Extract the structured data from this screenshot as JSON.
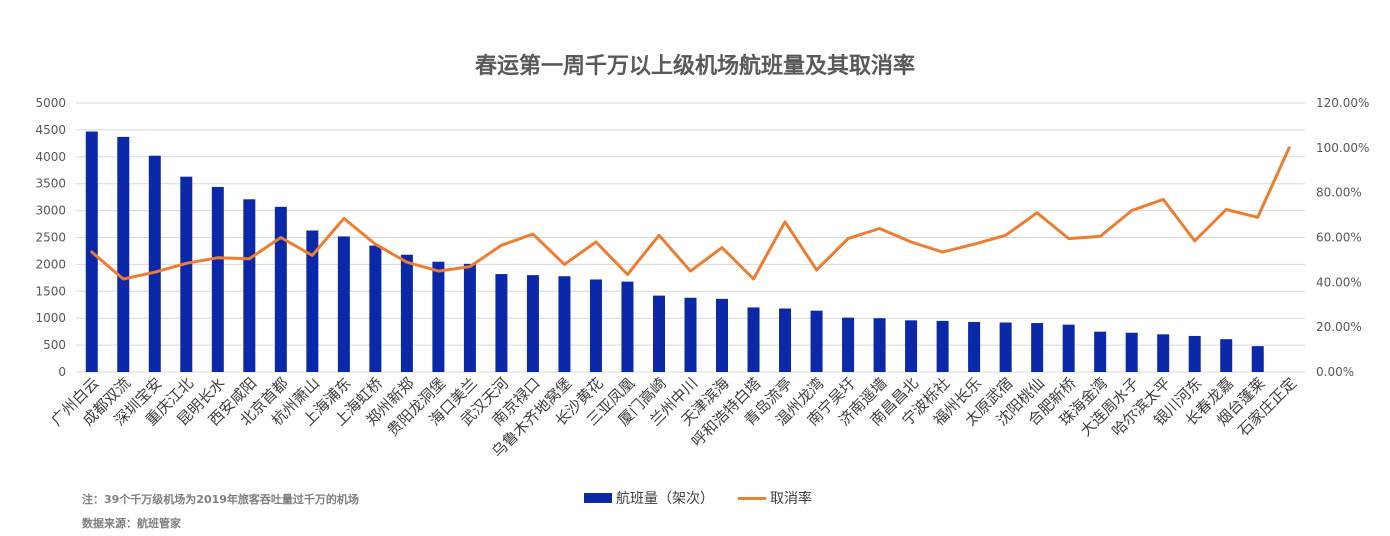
{
  "chart_data": {
    "type": "bar",
    "title": "春运第一周千万以上级机场航班量及其取消率",
    "categories": [
      "广州白云",
      "成都双流",
      "深圳宝安",
      "重庆江北",
      "昆明长水",
      "西安咸阳",
      "北京首都",
      "杭州萧山",
      "上海浦东",
      "上海虹桥",
      "郑州新郑",
      "贵阳龙洞堡",
      "海口美兰",
      "武汉天河",
      "南京禄口",
      "乌鲁木齐地窝堡",
      "长沙黄花",
      "三亚凤凰",
      "厦门高崎",
      "兰州中川",
      "天津滨海",
      "呼和浩特白塔",
      "青岛流亭",
      "温州龙湾",
      "南宁吴圩",
      "济南遥墙",
      "南昌昌北",
      "宁波栎社",
      "福州长乐",
      "太原武宿",
      "沈阳桃仙",
      "合肥新桥",
      "珠海金湾",
      "大连周水子",
      "哈尔滨太平",
      "银川河东",
      "长春龙嘉",
      "烟台蓬莱",
      "石家庄正定"
    ],
    "series": [
      {
        "name": "航班量（架次）",
        "type": "bar",
        "axis": "left",
        "color": "#0a28a8",
        "values": [
          4470,
          4370,
          4020,
          3630,
          3440,
          3210,
          3070,
          2630,
          2520,
          2350,
          2180,
          2050,
          2010,
          1820,
          1800,
          1780,
          1720,
          1680,
          1420,
          1380,
          1360,
          1200,
          1180,
          1140,
          1010,
          1000,
          960,
          950,
          930,
          920,
          910,
          880,
          750,
          730,
          700,
          670,
          610,
          480,
          0
        ]
      },
      {
        "name": "取消率",
        "type": "line",
        "axis": "right",
        "color": "#ed7d31",
        "values": [
          53.5,
          41.5,
          44.5,
          48.5,
          51,
          50.5,
          60,
          52,
          68.5,
          57,
          49,
          45,
          47,
          56.5,
          61.5,
          48,
          58,
          43.5,
          61,
          45,
          55.5,
          41.5,
          67,
          45.5,
          59.5,
          64,
          58,
          53.5,
          57,
          61,
          71,
          59.5,
          60.5,
          72,
          77,
          58.5,
          72.5,
          69,
          100
        ]
      }
    ],
    "y_left": {
      "min": 0,
      "max": 5000,
      "step": 500,
      "ticks": [
        "0",
        "500",
        "1000",
        "1500",
        "2000",
        "2500",
        "3000",
        "3500",
        "4000",
        "4500",
        "5000"
      ]
    },
    "y_right": {
      "min": 0,
      "max": 120,
      "step": 20,
      "ticks": [
        "0.00%",
        "20.00%",
        "40.00%",
        "60.00%",
        "80.00%",
        "100.00%",
        "120.00%"
      ]
    },
    "grid": true,
    "legend_position": "bottom"
  },
  "notes": {
    "note": "注：39个千万级机场为2019年旅客吞吐量过千万的机场",
    "source": "数据来源：航班管家"
  },
  "legend": {
    "bar_label": "航班量（架次）",
    "line_label": "取消率"
  }
}
